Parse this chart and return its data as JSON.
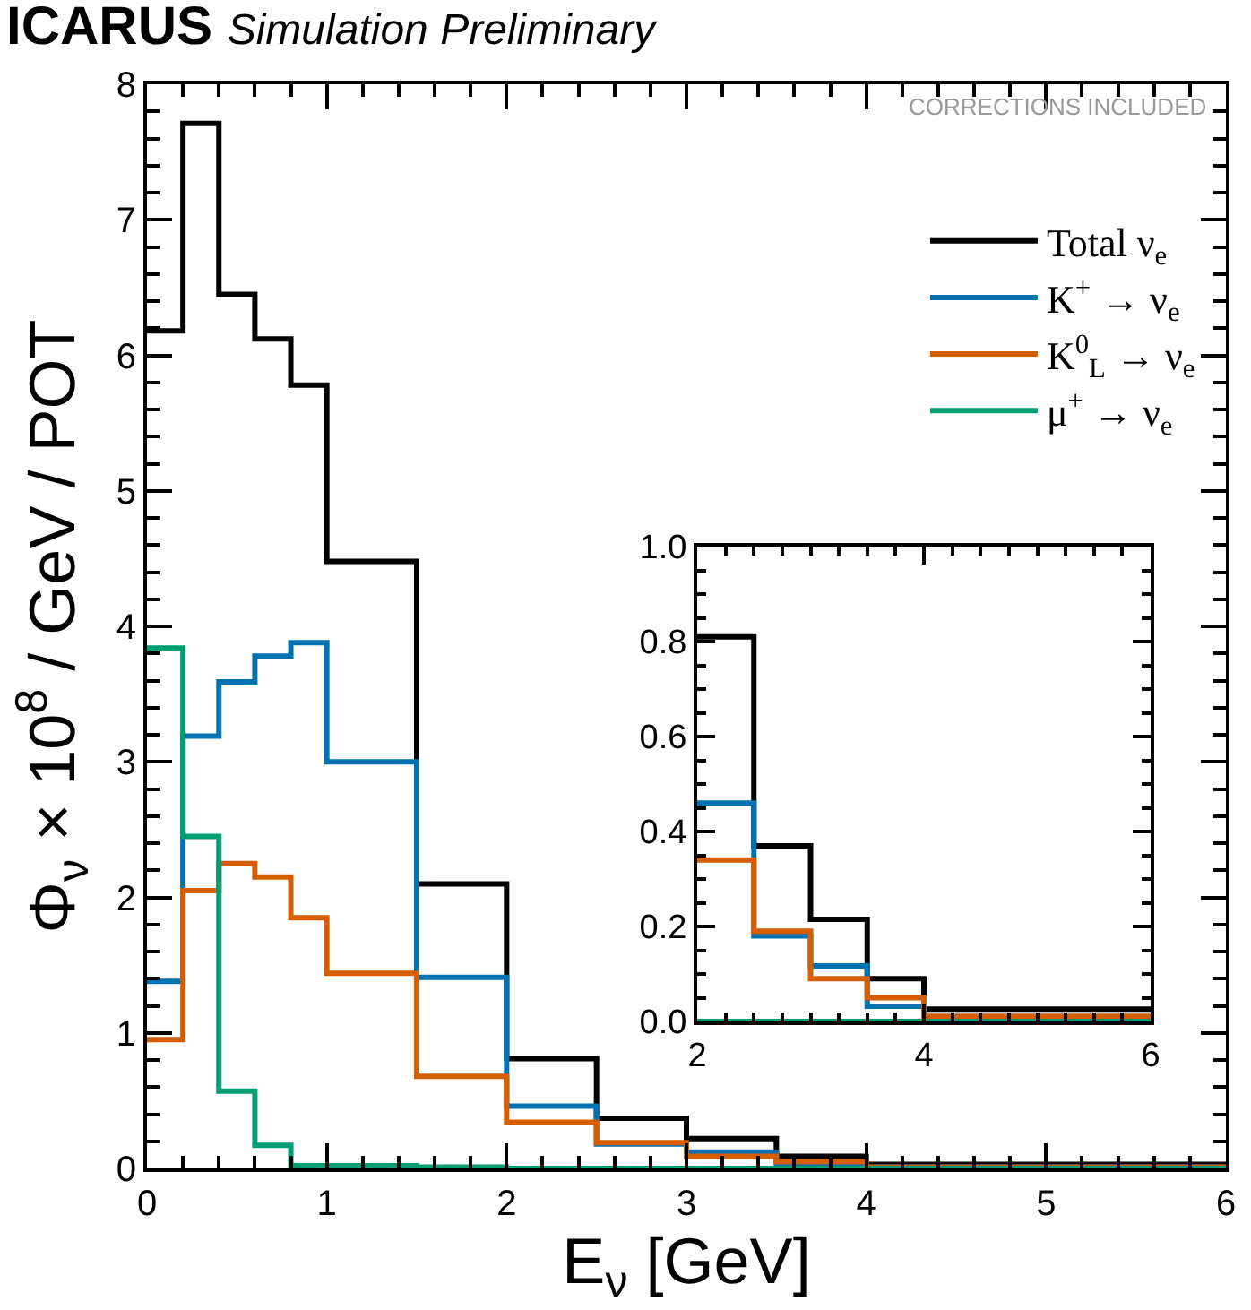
{
  "chart_data": [
    {
      "type": "histogram",
      "title": "ICARUS",
      "subtitle": "Simulation Preliminary",
      "xlabel": "E$_{ν}$ [GeV]",
      "ylabel": "Φ$_{ν}$ × 10$^{8}$ / GeV / POT",
      "annotations": [
        "CORRECTIONS INCLUDED"
      ],
      "bins": [
        0,
        0.2,
        0.4,
        0.6,
        0.8,
        1,
        1.5,
        2,
        2.5,
        3,
        3.5,
        4,
        6
      ],
      "series": [
        {
          "name": "Total ν$_{e}$",
          "color": "#000000",
          "values": [
            6.18,
            7.71,
            6.45,
            6.12,
            5.78,
            4.48,
            2.1,
            0.81,
            0.37,
            0.22,
            0.09,
            0.03
          ]
        },
        {
          "name": "K$^{+}$ → ν$_{e}$",
          "color": "#0072b2",
          "values": [
            1.38,
            3.19,
            3.59,
            3.78,
            3.88,
            3.0,
            1.41,
            0.46,
            0.18,
            0.12,
            0.03,
            0.01
          ]
        },
        {
          "name": "K$^{0}$$_{L}$ → ν$_{e}$",
          "color": "#d55e00",
          "values": [
            0.95,
            2.05,
            2.25,
            2.15,
            1.85,
            1.44,
            0.68,
            0.34,
            0.19,
            0.09,
            0.05,
            0.01
          ]
        },
        {
          "name": "μ$^{+}$ → ν$_{e}$",
          "color": "#009e73",
          "values": [
            3.84,
            2.45,
            0.57,
            0.17,
            0.02,
            0.02,
            0.01,
            0,
            0,
            0,
            0,
            0
          ]
        }
      ],
      "xlim": [
        0,
        6
      ],
      "xticks": [
        0,
        1,
        2,
        3,
        4,
        5,
        6
      ],
      "ylim": [
        0,
        8
      ],
      "yticks": [
        0,
        1,
        2,
        3,
        4,
        5,
        6,
        7,
        8
      ],
      "grid": false,
      "legend": "top right"
    },
    {
      "type": "histogram",
      "bins": [
        2,
        2.5,
        3,
        3.5,
        4,
        6
      ],
      "series": [
        {
          "color": "#000000",
          "values": [
            0.81,
            0.37,
            0.215,
            0.09,
            0.026
          ]
        },
        {
          "color": "#0072b2",
          "values": [
            0.46,
            0.18,
            0.117,
            0.032,
            0.006
          ]
        },
        {
          "color": "#d55e00",
          "values": [
            0.34,
            0.19,
            0.09,
            0.05,
            0.011
          ]
        },
        {
          "color": "#009e73",
          "values": [
            0,
            0,
            0,
            0,
            0
          ]
        }
      ],
      "xlim": [
        2,
        6
      ],
      "xticks": [
        2,
        4,
        6
      ],
      "ylim": [
        0,
        1
      ],
      "yticks": [
        {
          "value": 0,
          "label": "0.0"
        },
        {
          "value": 0.2,
          "label": "0.2"
        },
        {
          "value": 0.4,
          "label": "0.4"
        },
        {
          "value": 0.6,
          "label": "0.6"
        },
        {
          "value": 0.8,
          "label": "0.8"
        },
        {
          "value": 1,
          "label": "1.0"
        }
      ],
      "grid": false,
      "legend": false
    }
  ]
}
